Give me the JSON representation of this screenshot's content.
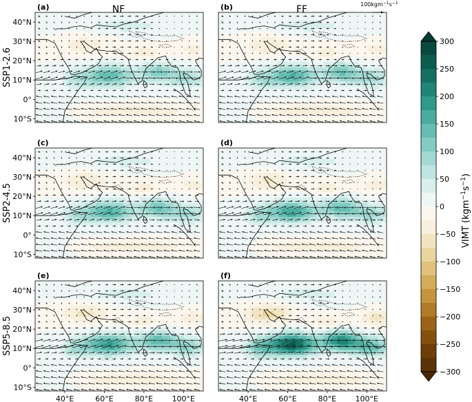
{
  "columns": [
    {
      "id": "nf",
      "title": "NF"
    },
    {
      "id": "ff",
      "title": "FF"
    }
  ],
  "rows": [
    {
      "id": "ssp126",
      "label": "SSP1-2.6",
      "intensity": 0.55
    },
    {
      "id": "ssp245",
      "label": "SSP2-4.5",
      "intensity": 0.62
    },
    {
      "id": "ssp585",
      "label": "SSP5-8.5",
      "intensity": 0.75
    }
  ],
  "panels": [
    {
      "id": "a",
      "label": "(a)",
      "row": 0,
      "col": 0,
      "strength": 0.55
    },
    {
      "id": "b",
      "label": "(b)",
      "row": 0,
      "col": 1,
      "strength": 0.6
    },
    {
      "id": "c",
      "label": "(c)",
      "row": 1,
      "col": 0,
      "strength": 0.6
    },
    {
      "id": "d",
      "label": "(d)",
      "row": 1,
      "col": 1,
      "strength": 0.66
    },
    {
      "id": "e",
      "label": "(e)",
      "row": 2,
      "col": 0,
      "strength": 0.7
    },
    {
      "id": "f",
      "label": "(f)",
      "row": 2,
      "col": 1,
      "strength": 1.0
    }
  ],
  "lat_ticks": [
    "40°N",
    "30°N",
    "20°N",
    "10°N",
    "0°",
    "10°S"
  ],
  "lat_values": [
    40,
    30,
    20,
    10,
    0,
    -10
  ],
  "lon_ticks": [
    "40°E",
    "60°E",
    "80°E",
    "100°E"
  ],
  "lon_values": [
    40,
    60,
    80,
    100
  ],
  "extent": {
    "lon_min": 25,
    "lon_max": 110,
    "lat_min": -12,
    "lat_max": 45
  },
  "reference_arrow": {
    "label_base": "100kgm",
    "label_sup1": "−1",
    "label_mid": "s",
    "label_sup2": "−1"
  },
  "colorbar": {
    "label_main": "VIMT (kgm",
    "label_sup1": "−1",
    "label_mid": "s",
    "label_sup2": "−1",
    "label_end": ")",
    "min": -300,
    "max": 300,
    "step": 25,
    "ticks": [
      "300",
      "250",
      "200",
      "150",
      "100",
      "50",
      "0",
      "−50",
      "−100",
      "−150",
      "−200",
      "−250",
      "−300"
    ],
    "tick_values": [
      300,
      250,
      200,
      150,
      100,
      50,
      0,
      -50,
      -100,
      -150,
      -200,
      -250,
      -300
    ],
    "colors_negative": [
      "#5a3205",
      "#6e3e08",
      "#84500e",
      "#9a6318",
      "#b07b28",
      "#c4953e",
      "#d4ad5a",
      "#e0c27d",
      "#ead5a0",
      "#f2e4c0",
      "#f8efdd",
      "#fcf7ee"
    ],
    "colors_positive": [
      "#eef7f6",
      "#d8efec",
      "#bfe5e0",
      "#a2d9d2",
      "#84ccc3",
      "#66bdb2",
      "#4aac9f",
      "#2f998b",
      "#1f8576",
      "#157061",
      "#0e5c4e",
      "#0a493d"
    ]
  }
}
